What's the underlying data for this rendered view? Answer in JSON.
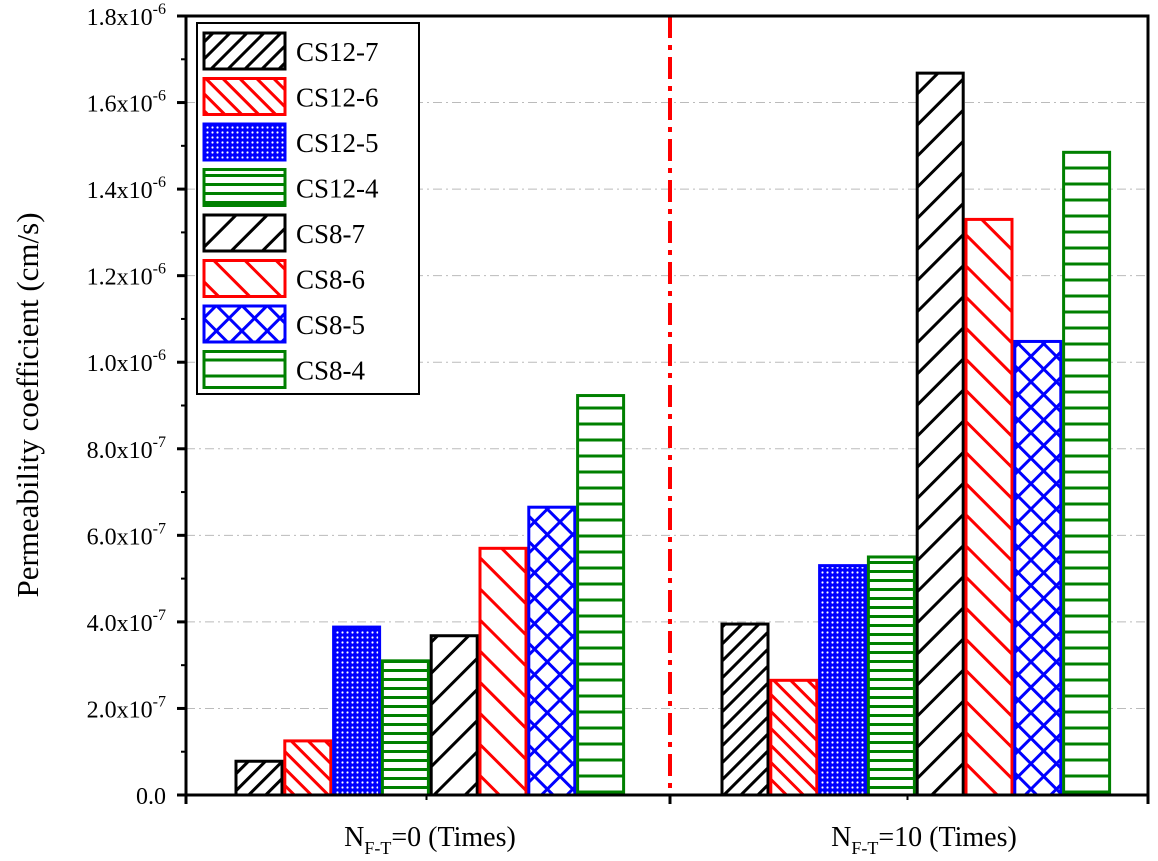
{
  "chart_data": {
    "type": "bar",
    "title": "",
    "ylabel": "Permeability coefficient (cm/s)",
    "xlabel": "",
    "ylim": [
      0,
      1.8e-06
    ],
    "grid": true,
    "legend_position": "top-left",
    "categories": [
      {
        "base": "N",
        "sub": "F-T",
        "rest": "=0 (Times)"
      },
      {
        "base": "N",
        "sub": "F-T",
        "rest": "=10 (Times)"
      }
    ],
    "y_ticks": [
      {
        "value": 0,
        "mantissa": "0.0",
        "exp": ""
      },
      {
        "value": 2e-07,
        "mantissa": "2.0x10",
        "exp": "-7"
      },
      {
        "value": 4e-07,
        "mantissa": "4.0x10",
        "exp": "-7"
      },
      {
        "value": 6e-07,
        "mantissa": "6.0x10",
        "exp": "-7"
      },
      {
        "value": 8e-07,
        "mantissa": "8.0x10",
        "exp": "-7"
      },
      {
        "value": 1e-06,
        "mantissa": "1.0x10",
        "exp": "-6"
      },
      {
        "value": 1.2e-06,
        "mantissa": "1.2x10",
        "exp": "-6"
      },
      {
        "value": 1.4e-06,
        "mantissa": "1.4x10",
        "exp": "-6"
      },
      {
        "value": 1.6e-06,
        "mantissa": "1.6x10",
        "exp": "-6"
      },
      {
        "value": 1.8e-06,
        "mantissa": "1.8x10",
        "exp": "-6"
      }
    ],
    "series": [
      {
        "name": "CS12-7",
        "color": "#000000",
        "pattern": "diag-fine",
        "values": [
          7.8e-08,
          3.95e-07
        ]
      },
      {
        "name": "CS12-6",
        "color": "#ff0000",
        "pattern": "back-diag-fine",
        "values": [
          1.25e-07,
          2.65e-07
        ]
      },
      {
        "name": "CS12-5",
        "color": "#0000ff",
        "pattern": "dots",
        "values": [
          3.88e-07,
          5.3e-07
        ]
      },
      {
        "name": "CS12-4",
        "color": "#008000",
        "pattern": "horiz-fine",
        "values": [
          3.1e-07,
          5.5e-07
        ]
      },
      {
        "name": "CS8-7",
        "color": "#000000",
        "pattern": "diag-wide",
        "values": [
          3.68e-07,
          1.668e-06
        ]
      },
      {
        "name": "CS8-6",
        "color": "#ff0000",
        "pattern": "back-diag-wide",
        "values": [
          5.7e-07,
          1.33e-06
        ]
      },
      {
        "name": "CS8-5",
        "color": "#0000ff",
        "pattern": "cross",
        "values": [
          6.65e-07,
          1.048e-06
        ]
      },
      {
        "name": "CS8-4",
        "color": "#008000",
        "pattern": "horiz-wide",
        "values": [
          9.23e-07,
          1.485e-06
        ]
      }
    ],
    "divider_color": "#ff0000",
    "grid_color": "#bbbbbb"
  }
}
